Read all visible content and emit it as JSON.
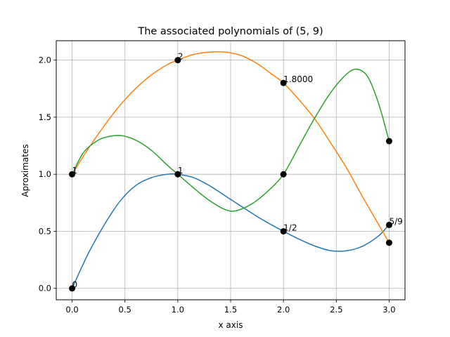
{
  "chart_data": {
    "type": "line",
    "title": "The associated polynomials of (5, 9)",
    "xlabel": "x axis",
    "ylabel": "Aproximates",
    "xlim": [
      -0.15,
      3.15
    ],
    "ylim": [
      -0.1,
      2.17
    ],
    "grid": true,
    "legend": "none",
    "x_ticks": [
      "0.0",
      "0.5",
      "1.0",
      "1.5",
      "2.0",
      "2.5",
      "3.0"
    ],
    "x_tick_values": [
      0,
      0.5,
      1,
      1.5,
      2,
      2.5,
      3
    ],
    "y_ticks": [
      "0.0",
      "0.5",
      "1.0",
      "1.5",
      "2.0"
    ],
    "y_tick_values": [
      0,
      0.5,
      1,
      1.5,
      2
    ],
    "series": [
      {
        "color": "#1f77b4",
        "x": [
          0,
          0.15,
          0.3,
          0.45,
          0.6,
          0.75,
          0.9,
          1.0,
          1.15,
          1.3,
          1.45,
          1.6,
          1.75,
          1.9,
          2.0,
          2.15,
          2.3,
          2.45,
          2.6,
          2.75,
          2.9,
          3.0
        ],
        "y": [
          0.0,
          0.3,
          0.55,
          0.76,
          0.9,
          0.97,
          1.0,
          1.0,
          0.97,
          0.9,
          0.81,
          0.72,
          0.63,
          0.55,
          0.5,
          0.43,
          0.37,
          0.33,
          0.33,
          0.37,
          0.46,
          0.56
        ]
      },
      {
        "color": "#ff7f0e",
        "x": [
          0,
          0.15,
          0.3,
          0.45,
          0.6,
          0.75,
          0.9,
          1.0,
          1.15,
          1.3,
          1.45,
          1.6,
          1.75,
          1.9,
          2.0,
          2.15,
          2.3,
          2.45,
          2.6,
          2.75,
          2.9,
          3.0
        ],
        "y": [
          1.0,
          1.22,
          1.42,
          1.6,
          1.75,
          1.87,
          1.96,
          2.0,
          2.05,
          2.07,
          2.07,
          2.04,
          1.97,
          1.87,
          1.8,
          1.65,
          1.48,
          1.27,
          1.05,
          0.8,
          0.56,
          0.4
        ]
      },
      {
        "color": "#2ca02c",
        "x": [
          0,
          0.1,
          0.2,
          0.3,
          0.45,
          0.6,
          0.75,
          0.9,
          1.0,
          1.15,
          1.3,
          1.45,
          1.55,
          1.7,
          1.85,
          2.0,
          2.15,
          2.3,
          2.45,
          2.6,
          2.7,
          2.8,
          2.9,
          3.0
        ],
        "y": [
          1.0,
          1.18,
          1.27,
          1.32,
          1.34,
          1.3,
          1.21,
          1.08,
          1.0,
          0.88,
          0.77,
          0.69,
          0.68,
          0.74,
          0.85,
          1.0,
          1.25,
          1.5,
          1.72,
          1.88,
          1.92,
          1.85,
          1.62,
          1.29
        ]
      }
    ],
    "markers": [
      {
        "x": 0,
        "y": 0
      },
      {
        "x": 1,
        "y": 1
      },
      {
        "x": 2,
        "y": 0.5
      },
      {
        "x": 3,
        "y": 0.5556
      },
      {
        "x": 0,
        "y": 1
      },
      {
        "x": 1,
        "y": 2
      },
      {
        "x": 2,
        "y": 1.8
      },
      {
        "x": 3,
        "y": 0.4
      },
      {
        "x": 2,
        "y": 1
      },
      {
        "x": 3,
        "y": 1.29
      }
    ],
    "annotations": [
      {
        "x": 0,
        "y": 0,
        "text": "0"
      },
      {
        "x": 1,
        "y": 1,
        "text": "1"
      },
      {
        "x": 2,
        "y": 0.5,
        "text": "1/2"
      },
      {
        "x": 3,
        "y": 0.5556,
        "text": "5/9"
      },
      {
        "x": 0,
        "y": 1,
        "text": "1"
      },
      {
        "x": 1,
        "y": 2,
        "text": "2"
      },
      {
        "x": 2,
        "y": 1.8,
        "text": "1.8000"
      }
    ]
  }
}
